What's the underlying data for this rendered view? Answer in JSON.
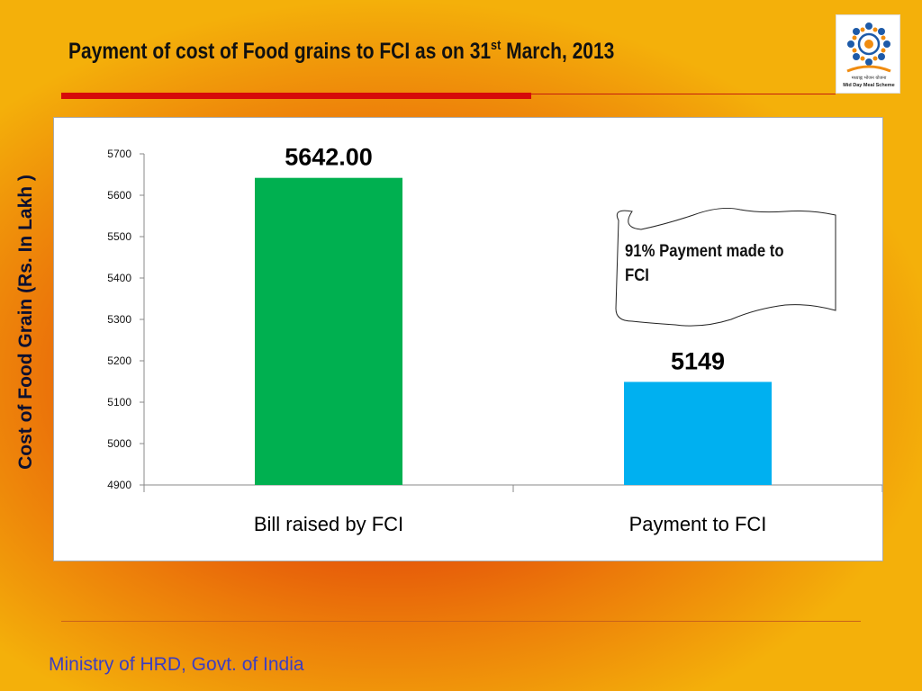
{
  "slide": {
    "title_main": "Payment of cost of Food grains to FCI as on 31",
    "title_sup": "st",
    "title_end": " March, 2013",
    "footer": "Ministry of HRD, Govt. of India",
    "logo_hindi": "मध्याह्न भोजन योजना",
    "logo_caption": "Mid Day Meal Scheme",
    "callout": "91% Payment made to FCI"
  },
  "colors": {
    "bill_bar": "#00b050",
    "payment_bar": "#00b0f0",
    "title_rule": "#d60a0a",
    "footer_text": "#3d3ec0"
  },
  "chart_data": {
    "type": "bar",
    "ylabel": "Cost of Food Grain (Rs. In Lakh )",
    "xlabel": "",
    "categories": [
      "Bill raised by FCI",
      "Payment to FCI"
    ],
    "values": [
      5642,
      5149
    ],
    "data_labels": [
      "5642.00",
      "5149"
    ],
    "bar_colors": [
      "#00b050",
      "#00b0f0"
    ],
    "ylim": [
      4900,
      5700
    ],
    "yticks": [
      4900,
      5000,
      5100,
      5200,
      5300,
      5400,
      5500,
      5600,
      5700
    ],
    "grid": false,
    "legend": "none"
  }
}
